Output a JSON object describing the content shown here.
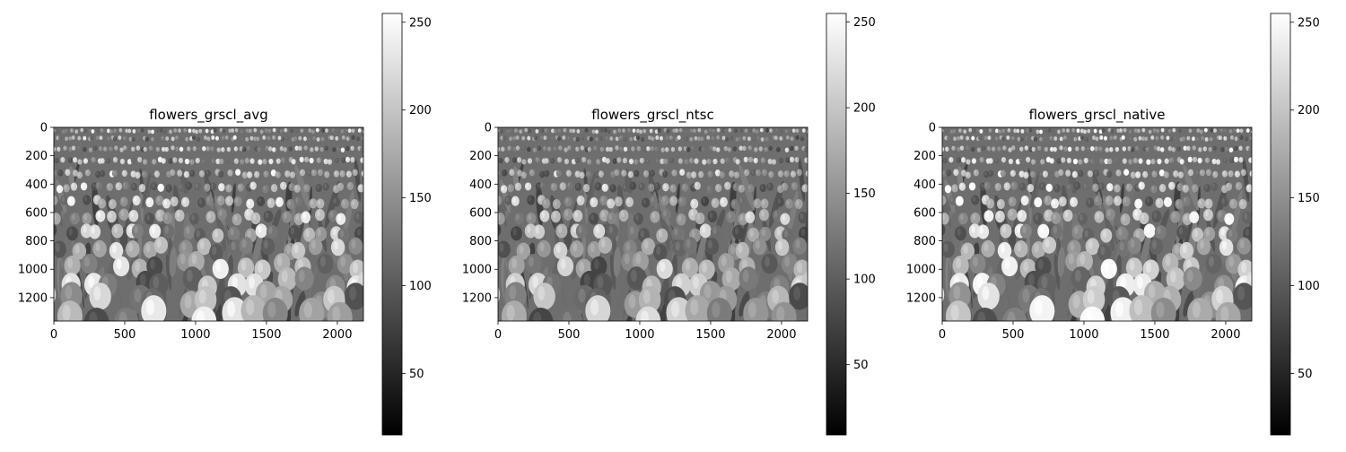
{
  "chart_data": [
    {
      "type": "heatmap",
      "title": "flowers_grscl_avg",
      "x_ticks": [
        0,
        500,
        1000,
        1500,
        2000
      ],
      "y_ticks": [
        0,
        200,
        400,
        600,
        800,
        1000,
        1200
      ],
      "xlim": [
        0,
        2184
      ],
      "ylim": [
        1365,
        0
      ],
      "colormap": "gray",
      "colorbar": {
        "ticks": [
          50,
          100,
          150,
          200,
          250
        ],
        "range": [
          15,
          255
        ]
      }
    },
    {
      "type": "heatmap",
      "title": "flowers_grscl_ntsc",
      "x_ticks": [
        0,
        500,
        1000,
        1500,
        2000
      ],
      "y_ticks": [
        0,
        200,
        400,
        600,
        800,
        1000,
        1200
      ],
      "xlim": [
        0,
        2184
      ],
      "ylim": [
        1365,
        0
      ],
      "colormap": "gray",
      "colorbar": {
        "ticks": [
          50,
          100,
          150,
          200,
          250
        ],
        "range": [
          9,
          255
        ]
      }
    },
    {
      "type": "heatmap",
      "title": "flowers_grscl_native",
      "x_ticks": [
        0,
        500,
        1000,
        1500,
        2000
      ],
      "y_ticks": [
        0,
        200,
        400,
        600,
        800,
        1000,
        1200
      ],
      "xlim": [
        0,
        2184
      ],
      "ylim": [
        1365,
        0
      ],
      "colormap": "gray",
      "colorbar": {
        "ticks": [
          50,
          100,
          150,
          200,
          250
        ],
        "range": [
          15,
          255
        ]
      }
    }
  ]
}
